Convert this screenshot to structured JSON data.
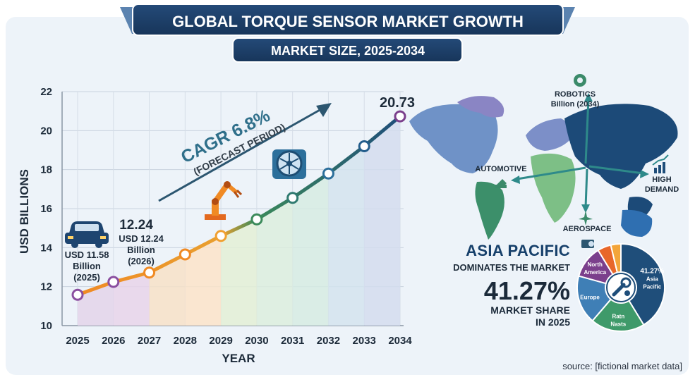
{
  "header": {
    "title": "GLOBAL TORQUE SENSOR MARKET GROWTH",
    "subtitle": "MARKET SIZE, 2025-2034"
  },
  "chart_data": {
    "type": "line",
    "xlabel": "YEAR",
    "ylabel": "USD BILLIONS",
    "categories": [
      "2025",
      "2026",
      "2027",
      "2028",
      "2029",
      "2030",
      "2031",
      "2032",
      "2033",
      "2034"
    ],
    "values": [
      11.58,
      12.24,
      12.72,
      13.65,
      14.6,
      15.45,
      16.55,
      17.8,
      19.2,
      20.73
    ],
    "ylim": [
      10,
      22
    ],
    "yticks": [
      "10",
      "12",
      "14",
      "16",
      "18",
      "20",
      "22"
    ],
    "grid": true,
    "annotations": {
      "start_line1": "USD 11.58",
      "start_line2": "Billion",
      "start_line3": "(2025)",
      "second_big": "12.24",
      "second_line1": "USD 12.24",
      "second_line2": "Billion",
      "second_line3": "(2026)",
      "end_value": "20.73",
      "cagr": "CAGR 6.8%",
      "cagr_sub": "(FORECAST PERIOD)"
    }
  },
  "map": {
    "robotics_line1": "ROBOTICS",
    "robotics_line2": "Billion (2034)",
    "automotive": "AUTOMOTIVE",
    "high_demand_line1": "HIGH",
    "high_demand_line2": "DEMAND",
    "aerospace": "AEROSPACE"
  },
  "region": {
    "title": "ASIA PACIFIC",
    "subtitle": "DOMINATES THE MARKET",
    "share": "41.27%",
    "share_sub_line1": "MARKET SHARE",
    "share_sub_line2": "IN 2025"
  },
  "pie": {
    "slices": [
      {
        "label_line1": "41.27%",
        "label_line2": "Asia",
        "label_line3": "Pacific",
        "value": 41.27,
        "color": "#1f4e7a"
      },
      {
        "label_line1": "Ratn",
        "label_line2": "Nasts",
        "label_line3": "",
        "value": 20,
        "color": "#3f9a6a"
      },
      {
        "label_line1": "Europe",
        "label_line2": "",
        "label_line3": "",
        "value": 18,
        "color": "#3f7fb6"
      },
      {
        "label_line1": "North",
        "label_line2": "America",
        "label_line3": "",
        "value": 12,
        "color": "#7b3f8c"
      },
      {
        "label_line1": "",
        "label_line2": "",
        "label_line3": "",
        "value": 5,
        "color": "#e8672a"
      },
      {
        "label_line1": "",
        "label_line2": "",
        "label_line3": "",
        "value": 3.73,
        "color": "#f3a53a"
      }
    ]
  },
  "source": "source: [fictional market data]",
  "colors": {
    "navy": "#1b3a63",
    "orange": "#f08a24",
    "teal": "#2f6f8a",
    "background": "#eaf1f8"
  }
}
